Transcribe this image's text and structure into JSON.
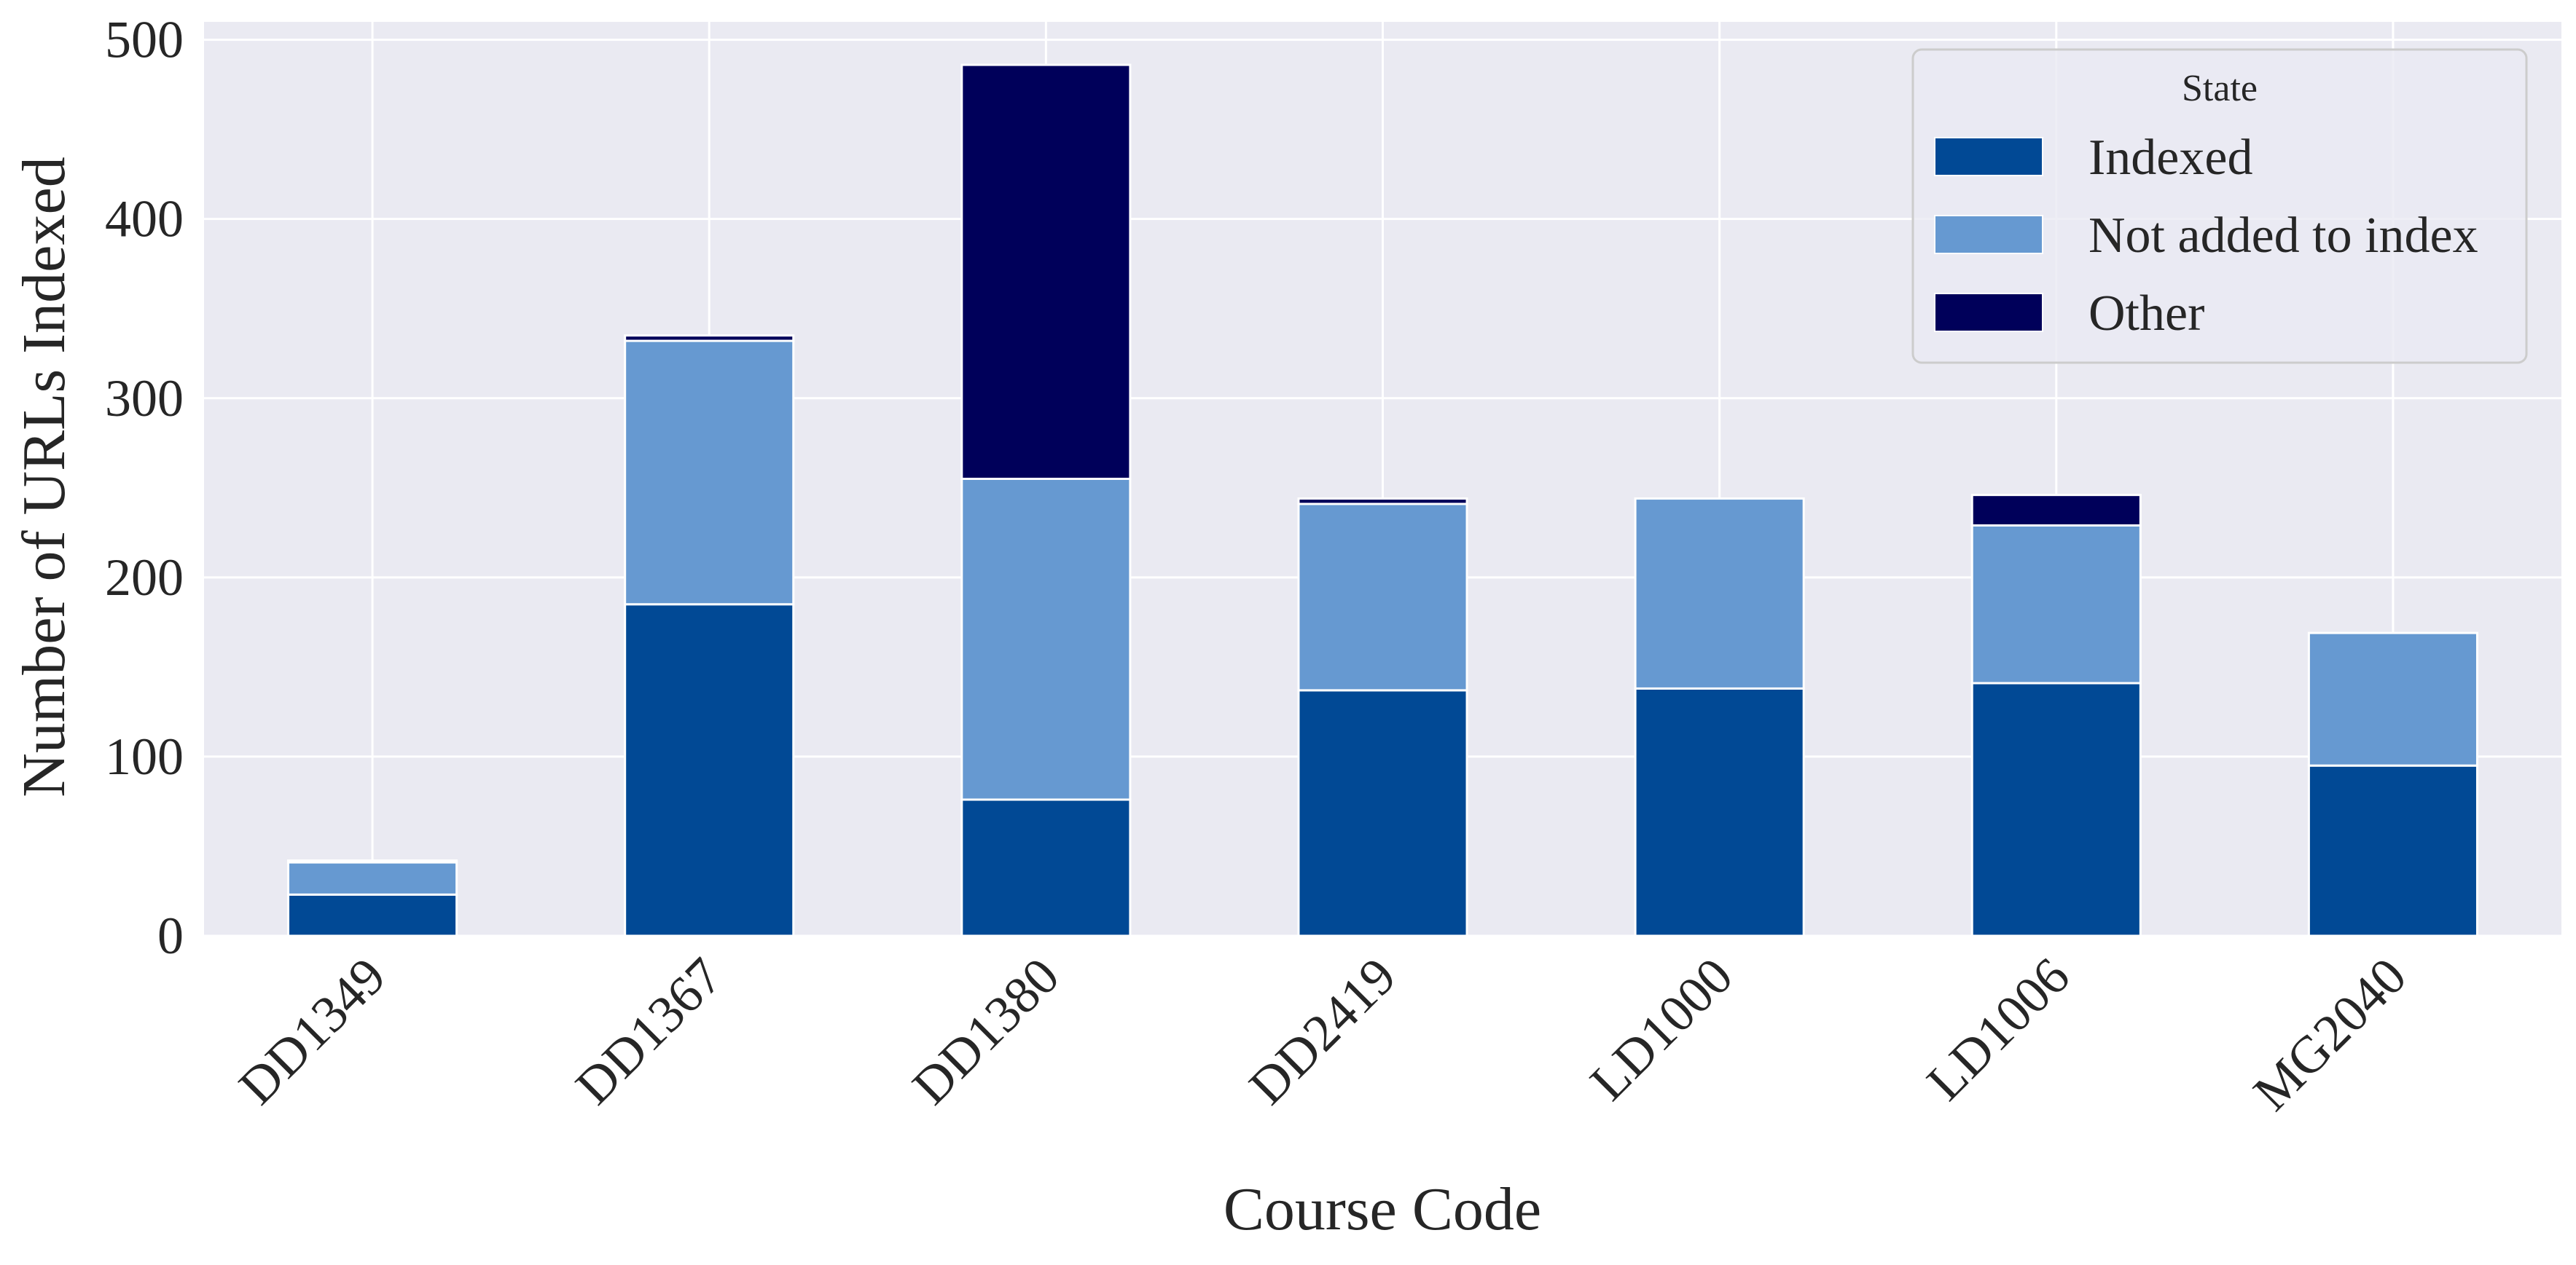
{
  "chart_data": {
    "type": "bar",
    "stacked": true,
    "categories": [
      "DD1349",
      "DD1367",
      "DD1380",
      "DD2419",
      "LD1000",
      "LD1006",
      "MG2040"
    ],
    "series": [
      {
        "name": "Indexed",
        "color": "#014995",
        "values": [
          23,
          185,
          76,
          137,
          138,
          141,
          95
        ]
      },
      {
        "name": "Not added to index",
        "color": "#6699d1",
        "values": [
          18,
          147,
          179,
          104,
          106,
          88,
          74
        ]
      },
      {
        "name": "Other",
        "color": "#00005a",
        "values": [
          1,
          3,
          231,
          3,
          0,
          17,
          0
        ]
      }
    ],
    "xlabel": "Course Code",
    "ylabel": "Number of URLs Indexed",
    "ylim": [
      0,
      510
    ],
    "yticks": [
      0,
      100,
      200,
      300,
      400,
      500
    ],
    "grid": true,
    "legend": {
      "title": "State",
      "position": "top-right"
    },
    "background": "#eaeaf2"
  }
}
